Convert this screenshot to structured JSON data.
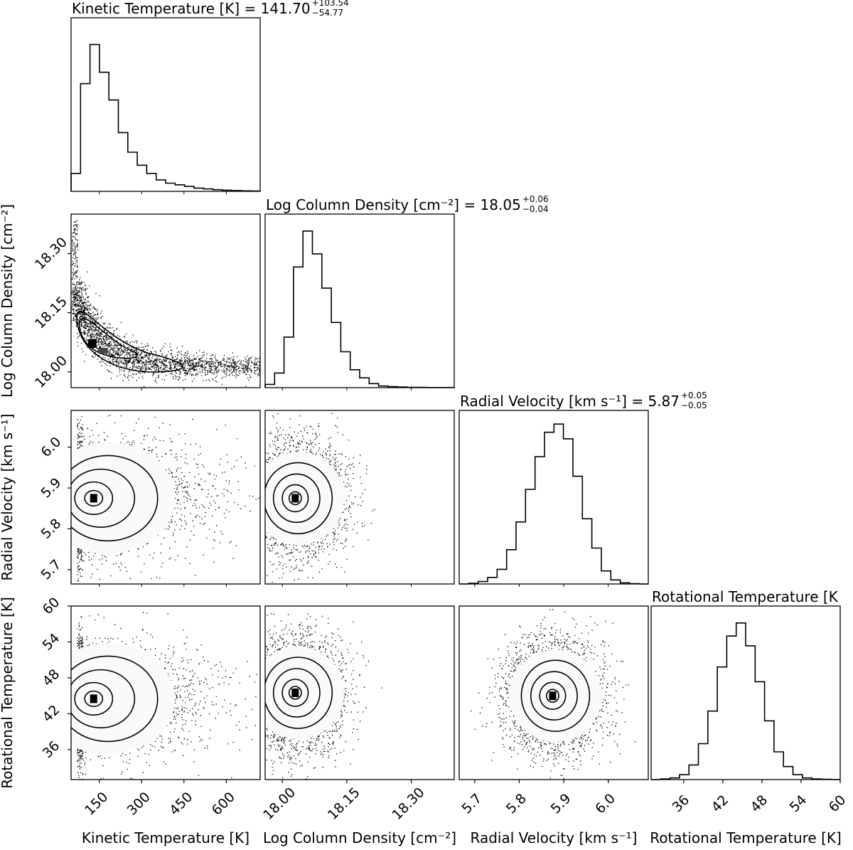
{
  "chart_data": {
    "type": "scatter",
    "variant": "corner-plot",
    "parameters": [
      {
        "key": "tkin",
        "label": "Kinetic Temperature [K]",
        "title": {
          "prefix": "Kinetic Temperature [K] = ",
          "median": "141.70",
          "plus": "+103.54",
          "minus": "−54.77"
        },
        "range": [
          50,
          720
        ],
        "ticks": [
          150,
          300,
          450,
          600
        ],
        "tick_labels": [
          "150",
          "300",
          "450",
          "600"
        ],
        "hist_edges_from": 50,
        "hist_bin_width": 33.5,
        "hist_counts": [
          0.11,
          0.66,
          0.9,
          0.73,
          0.56,
          0.36,
          0.24,
          0.16,
          0.11,
          0.07,
          0.05,
          0.04,
          0.03,
          0.02,
          0.015,
          0.01,
          0.007,
          0.005,
          0.003,
          0.002
        ]
      },
      {
        "key": "logn",
        "label": "Log Column Density [cm⁻²]",
        "title": {
          "prefix": "Log Column Density [cm⁻²] = ",
          "median": "18.05",
          "plus": "+0.06",
          "minus": "−0.04"
        },
        "range": [
          17.96,
          18.4
        ],
        "ticks": [
          18.0,
          18.15,
          18.3
        ],
        "tick_labels": [
          "18.00",
          "18.15",
          "18.30"
        ],
        "hist_edges_from": 17.96,
        "hist_bin_width": 0.022,
        "hist_counts": [
          0.02,
          0.09,
          0.31,
          0.74,
          0.96,
          0.82,
          0.61,
          0.4,
          0.22,
          0.11,
          0.06,
          0.025,
          0.01,
          0.006,
          0.004,
          0.002,
          0.002,
          0.001,
          0.001,
          0.001
        ]
      },
      {
        "key": "vrad",
        "label": "Radial Velocity [km s⁻¹]",
        "title": {
          "prefix": "Radial Velocity [km s⁻¹] = ",
          "median": "5.87",
          "plus": "+0.05",
          "minus": "−0.05"
        },
        "range": [
          5.665,
          6.09
        ],
        "ticks": [
          5.7,
          5.8,
          5.9,
          6.0
        ],
        "tick_labels": [
          "5.7",
          "5.8",
          "5.9",
          "6.0"
        ],
        "hist_edges_from": 5.665,
        "hist_bin_width": 0.0213,
        "hist_counts": [
          0.0,
          0.004,
          0.015,
          0.04,
          0.09,
          0.21,
          0.38,
          0.58,
          0.78,
          0.93,
          0.98,
          0.89,
          0.66,
          0.4,
          0.22,
          0.08,
          0.025,
          0.007,
          0.002,
          0.0
        ]
      },
      {
        "key": "trot",
        "label": "Rotational Temperature [K]",
        "title": {
          "prefix": "Rotational Temperature [K",
          "median": "",
          "plus": "",
          "minus": ""
        },
        "range": [
          31,
          60
        ],
        "ticks": [
          36,
          42,
          48,
          54,
          60
        ],
        "tick_labels": [
          "36",
          "42",
          "48",
          "54",
          "60"
        ],
        "hist_edges_from": 31,
        "hist_bin_width": 1.45,
        "hist_counts": [
          0.0,
          0.004,
          0.01,
          0.03,
          0.09,
          0.22,
          0.42,
          0.69,
          0.88,
          0.96,
          0.82,
          0.6,
          0.36,
          0.17,
          0.08,
          0.03,
          0.01,
          0.004,
          0.002,
          0.0
        ]
      }
    ],
    "pairs": [
      {
        "x": "tkin",
        "y": "logn",
        "x_mode": 125,
        "y_mode": 18.07,
        "shape": "banana"
      },
      {
        "x": "tkin",
        "y": "vrad",
        "x_mode": 130,
        "y_mode": 5.875,
        "shape": "ellipse"
      },
      {
        "x": "logn",
        "y": "vrad",
        "x_mode": 18.03,
        "y_mode": 5.875,
        "shape": "ellipse"
      },
      {
        "x": "tkin",
        "y": "trot",
        "x_mode": 130,
        "y_mode": 44.5,
        "shape": "ellipse"
      },
      {
        "x": "logn",
        "y": "trot",
        "x_mode": 18.03,
        "y_mode": 45.5,
        "shape": "ellipse"
      },
      {
        "x": "vrad",
        "y": "trot",
        "x_mode": 5.875,
        "y_mode": 45.0,
        "shape": "ellipse"
      }
    ],
    "grid": false,
    "legend": "none"
  }
}
